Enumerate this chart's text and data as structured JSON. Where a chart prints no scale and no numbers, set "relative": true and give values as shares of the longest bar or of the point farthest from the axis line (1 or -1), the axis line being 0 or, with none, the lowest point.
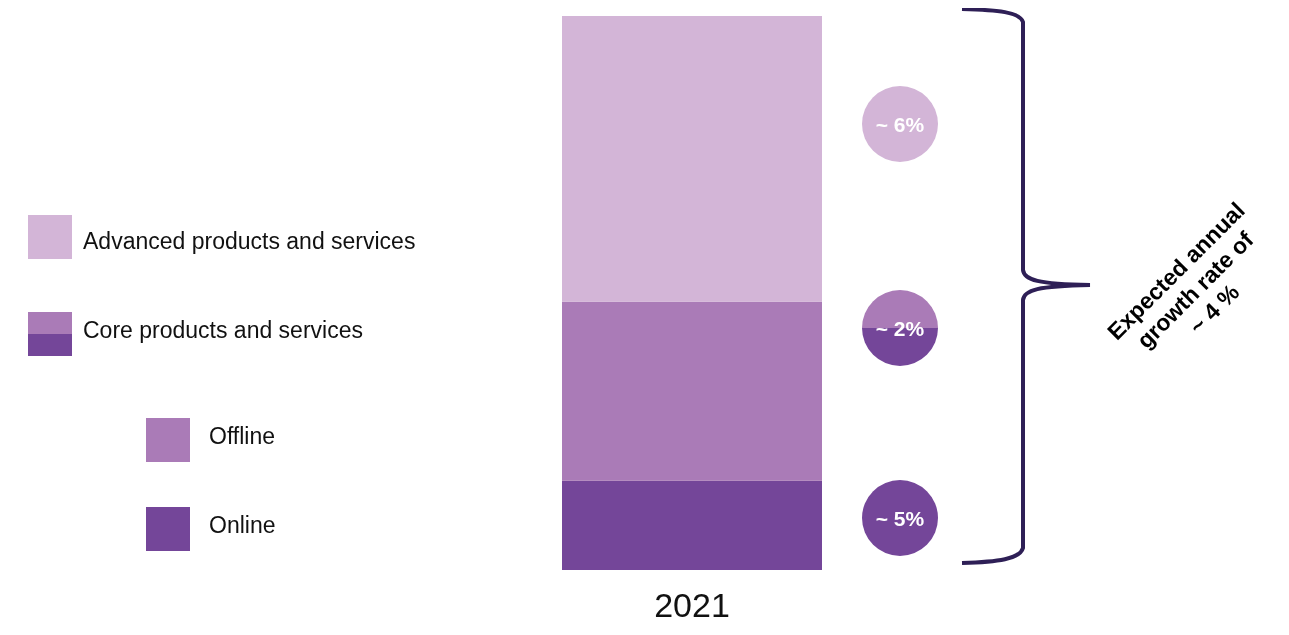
{
  "chart_data": {
    "type": "bar",
    "stacked": true,
    "relative": true,
    "categories": [
      "2021"
    ],
    "legend": "left",
    "series": [
      {
        "name": "Online",
        "color": "#744699",
        "values": [
          0.161
        ]
      },
      {
        "name": "Offline",
        "color": "#aa7bb7",
        "values": [
          0.323
        ]
      },
      {
        "name": "Advanced products and services",
        "color": "#d3b5d7",
        "values": [
          0.516
        ]
      }
    ],
    "annotations": [
      "Core products and services",
      "~ 6%",
      "~ 2%",
      "~ 5%",
      "Expected annual growth rate of ~ 4 %"
    ]
  }
}
